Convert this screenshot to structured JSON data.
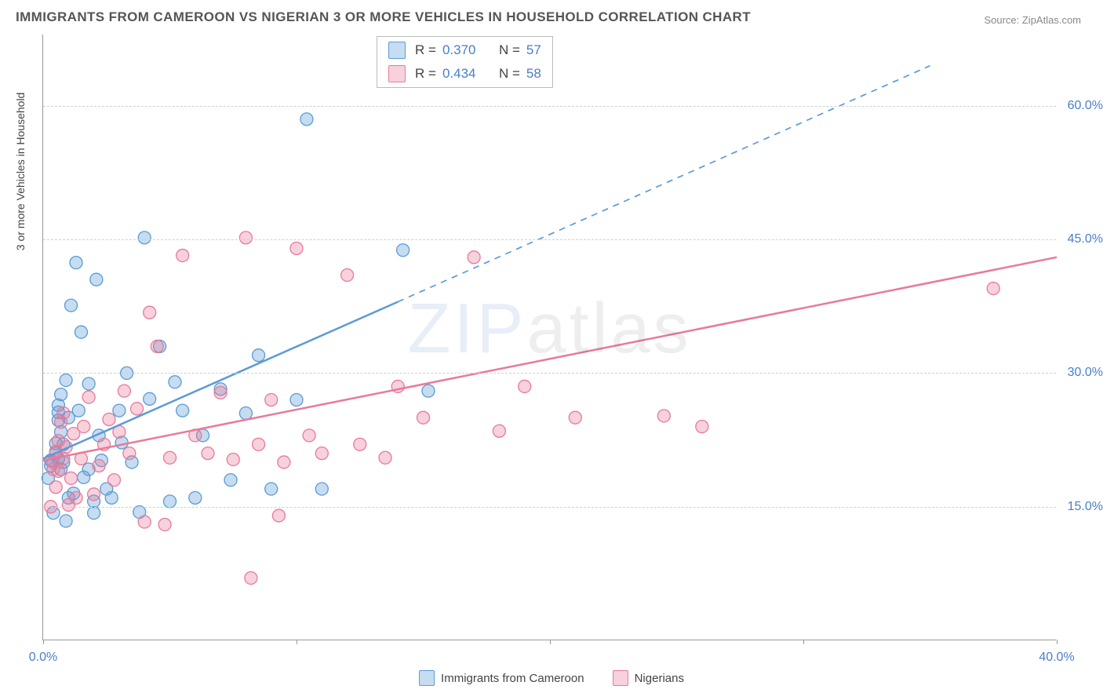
{
  "title": "IMMIGRANTS FROM CAMEROON VS NIGERIAN 3 OR MORE VEHICLES IN HOUSEHOLD CORRELATION CHART",
  "source": "Source: ZipAtlas.com",
  "ylabel": "3 or more Vehicles in Household",
  "watermark_part1": "ZIP",
  "watermark_part2": "atlas",
  "chart": {
    "type": "scatter",
    "background_color": "#ffffff",
    "grid_color": "#d0d0d0",
    "axis_color": "#999999",
    "tick_label_color": "#4a7ec9",
    "xlim": [
      0,
      40
    ],
    "ylim": [
      0,
      68
    ],
    "x_ticks": [
      0,
      10,
      20,
      30,
      40
    ],
    "x_tick_labels": [
      "0.0%",
      "",
      "",
      "",
      "40.0%"
    ],
    "y_ticks": [
      15,
      30,
      45,
      60
    ],
    "y_tick_labels": [
      "15.0%",
      "30.0%",
      "45.0%",
      "60.0%"
    ],
    "marker_radius": 8,
    "marker_fill_opacity": 0.35,
    "line_width": 2.5,
    "series": [
      {
        "name": "Immigrants from Cameroon",
        "color": "#5b9bd5",
        "fill": "rgba(91,155,213,0.35)",
        "R": "0.370",
        "N": "57",
        "trend": {
          "x1": 0,
          "y1": 20.4,
          "x2": 14,
          "y2": 38,
          "dash_to_x": 35,
          "dash_to_y": 64.5
        },
        "points": [
          [
            0.2,
            18.2
          ],
          [
            0.3,
            19.6
          ],
          [
            0.3,
            20.2
          ],
          [
            0.4,
            14.3
          ],
          [
            0.5,
            21.0
          ],
          [
            0.5,
            22.1
          ],
          [
            0.6,
            24.7
          ],
          [
            0.6,
            25.6
          ],
          [
            0.6,
            26.4
          ],
          [
            0.6,
            20.4
          ],
          [
            0.7,
            19.2
          ],
          [
            0.7,
            27.6
          ],
          [
            0.7,
            23.4
          ],
          [
            0.8,
            22.0
          ],
          [
            0.8,
            20.0
          ],
          [
            0.9,
            13.4
          ],
          [
            0.9,
            29.2
          ],
          [
            1.0,
            25.0
          ],
          [
            1.0,
            16.0
          ],
          [
            1.1,
            37.6
          ],
          [
            1.2,
            16.5
          ],
          [
            1.3,
            42.4
          ],
          [
            1.4,
            25.8
          ],
          [
            1.5,
            34.6
          ],
          [
            1.6,
            18.3
          ],
          [
            1.8,
            19.2
          ],
          [
            1.8,
            28.8
          ],
          [
            2.0,
            14.3
          ],
          [
            2.0,
            15.6
          ],
          [
            2.1,
            40.5
          ],
          [
            2.2,
            23.0
          ],
          [
            2.3,
            20.2
          ],
          [
            2.5,
            17.0
          ],
          [
            2.7,
            16.0
          ],
          [
            3.0,
            25.8
          ],
          [
            3.1,
            22.2
          ],
          [
            3.3,
            30.0
          ],
          [
            3.5,
            20.0
          ],
          [
            3.8,
            14.4
          ],
          [
            4.0,
            45.2
          ],
          [
            4.2,
            27.1
          ],
          [
            4.6,
            33.0
          ],
          [
            5.0,
            15.6
          ],
          [
            5.2,
            29.0
          ],
          [
            5.5,
            25.8
          ],
          [
            6.0,
            16.0
          ],
          [
            6.3,
            23.0
          ],
          [
            7.0,
            28.2
          ],
          [
            7.4,
            18.0
          ],
          [
            8.0,
            25.5
          ],
          [
            8.5,
            32.0
          ],
          [
            9.0,
            17.0
          ],
          [
            10.0,
            27.0
          ],
          [
            10.4,
            58.5
          ],
          [
            11.0,
            17.0
          ],
          [
            14.2,
            43.8
          ],
          [
            15.2,
            28.0
          ]
        ]
      },
      {
        "name": "Nigerians",
        "color": "#e87a9a",
        "fill": "rgba(232,122,154,0.35)",
        "R": "0.434",
        "N": "58",
        "trend": {
          "x1": 0,
          "y1": 20.2,
          "x2": 40,
          "y2": 43,
          "dash_to_x": null,
          "dash_to_y": null
        },
        "points": [
          [
            0.3,
            15.0
          ],
          [
            0.4,
            19.2
          ],
          [
            0.4,
            20.0
          ],
          [
            0.5,
            21.2
          ],
          [
            0.5,
            17.2
          ],
          [
            0.6,
            22.4
          ],
          [
            0.6,
            19.0
          ],
          [
            0.7,
            24.5
          ],
          [
            0.8,
            20.4
          ],
          [
            0.8,
            25.5
          ],
          [
            0.9,
            21.7
          ],
          [
            1.0,
            15.2
          ],
          [
            1.1,
            18.2
          ],
          [
            1.2,
            23.2
          ],
          [
            1.3,
            16.0
          ],
          [
            1.5,
            20.4
          ],
          [
            1.6,
            24.0
          ],
          [
            1.8,
            27.3
          ],
          [
            2.0,
            16.4
          ],
          [
            2.2,
            19.6
          ],
          [
            2.4,
            22.0
          ],
          [
            2.6,
            24.8
          ],
          [
            2.8,
            18.0
          ],
          [
            3.0,
            23.4
          ],
          [
            3.2,
            28
          ],
          [
            3.4,
            21.0
          ],
          [
            3.7,
            26.0
          ],
          [
            4.0,
            13.3
          ],
          [
            4.2,
            36.8
          ],
          [
            4.5,
            33.0
          ],
          [
            4.8,
            13.0
          ],
          [
            5.0,
            20.5
          ],
          [
            5.5,
            43.2
          ],
          [
            6.0,
            23.0
          ],
          [
            6.5,
            21.0
          ],
          [
            7.0,
            27.8
          ],
          [
            7.5,
            20.3
          ],
          [
            8.0,
            45.2
          ],
          [
            8.2,
            7.0
          ],
          [
            8.5,
            22.0
          ],
          [
            9.0,
            27
          ],
          [
            9.3,
            14.0
          ],
          [
            9.5,
            20.0
          ],
          [
            10.0,
            44.0
          ],
          [
            10.5,
            23.0
          ],
          [
            11.0,
            21.0
          ],
          [
            12.0,
            41.0
          ],
          [
            12.5,
            22.0
          ],
          [
            13.5,
            20.5
          ],
          [
            14.0,
            28.5
          ],
          [
            15.0,
            25.0
          ],
          [
            17.0,
            43.0
          ],
          [
            18.0,
            23.5
          ],
          [
            19.0,
            28.5
          ],
          [
            21.0,
            25.0
          ],
          [
            24.5,
            25.2
          ],
          [
            26.0,
            24.0
          ],
          [
            37.5,
            39.5
          ]
        ]
      }
    ]
  },
  "legend_top": {
    "border_color": "#bbbbbb",
    "r_label": "R =",
    "n_label": "N ="
  },
  "legend_bottom_labels": [
    "Immigrants from Cameroon",
    "Nigerians"
  ]
}
